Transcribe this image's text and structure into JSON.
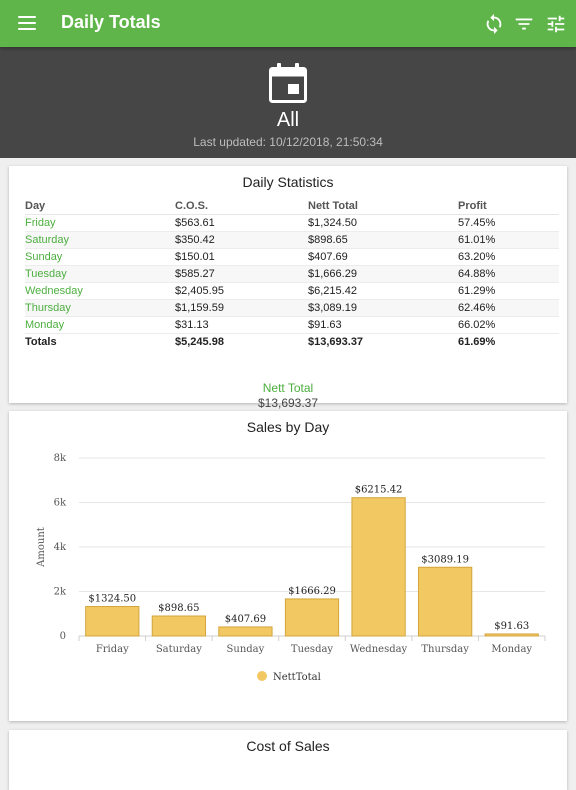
{
  "appbar": {
    "title": "Daily Totals"
  },
  "icons": {
    "menu": "menu-icon",
    "sync": "sync-icon",
    "filter": "filter-icon",
    "tune": "tune-icon",
    "calendar": "calendar-icon"
  },
  "colors": {
    "appbar": "#5fb54a",
    "hero": "#464646",
    "bar": "#f2c862",
    "bar_stroke": "#d4a53c",
    "day_text": "#4caf3f"
  },
  "hero": {
    "period": "All",
    "last_updated": "Last updated: 10/12/2018, 21:50:34"
  },
  "stats": {
    "title": "Daily Statistics",
    "headers": [
      "Day",
      "C.O.S.",
      "Nett Total",
      "Profit"
    ],
    "rows": [
      [
        "Friday",
        "$563.61",
        "$1,324.50",
        "57.45%"
      ],
      [
        "Saturday",
        "$350.42",
        "$898.65",
        "61.01%"
      ],
      [
        "Sunday",
        "$150.01",
        "$407.69",
        "63.20%"
      ],
      [
        "Tuesday",
        "$585.27",
        "$1,666.29",
        "64.88%"
      ],
      [
        "Wednesday",
        "$2,405.95",
        "$6,215.42",
        "61.29%"
      ],
      [
        "Thursday",
        "$1,159.59",
        "$3,089.19",
        "62.46%"
      ],
      [
        "Monday",
        "$31.13",
        "$91.63",
        "66.02%"
      ]
    ],
    "totals": [
      "Totals",
      "$5,245.98",
      "$13,693.37",
      "61.69%"
    ],
    "nett_label": "Nett Total",
    "nett_value": "$13,693.37"
  },
  "chart_data": {
    "type": "bar",
    "title": "Sales by Day",
    "ylabel": "Amount",
    "xlabel": "",
    "categories": [
      "Friday",
      "Saturday",
      "Sunday",
      "Tuesday",
      "Wednesday",
      "Thursday",
      "Monday"
    ],
    "series": [
      {
        "name": "NettTotal",
        "values": [
          1324.5,
          898.65,
          407.69,
          1666.29,
          6215.42,
          3089.19,
          91.63
        ]
      }
    ],
    "data_labels": [
      "$1324.50",
      "$898.65",
      "$407.69",
      "$1666.29",
      "$6215.42",
      "$3089.19",
      "$91.63"
    ],
    "y_ticks": [
      0,
      2000,
      4000,
      6000,
      8000
    ],
    "y_tick_labels": [
      "0",
      "2k",
      "4k",
      "6k",
      "8k"
    ],
    "ylim": [
      0,
      8000
    ],
    "grid": true,
    "legend": "bottom"
  },
  "cost_card": {
    "title": "Cost of Sales"
  }
}
